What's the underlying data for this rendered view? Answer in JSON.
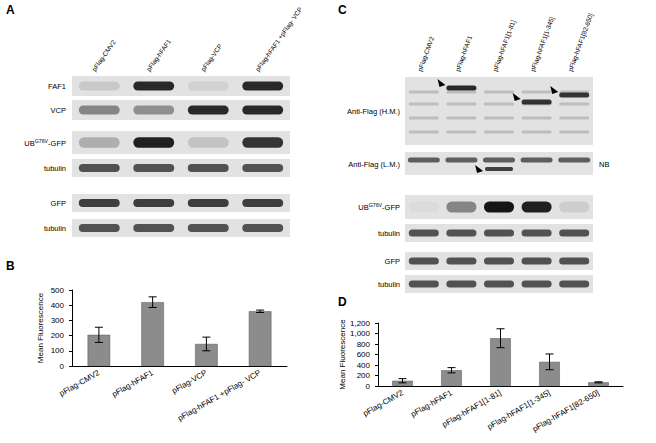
{
  "panel_labels": {
    "A": "A",
    "B": "B",
    "C": "C",
    "D": "D"
  },
  "blots": [
    {
      "panel_label": "A",
      "lanes": [
        "pFlag-CMV2",
        "pFlag-hFAF1",
        "pFlag-VCP",
        "pFlag-hFAF1 +pFlag- VCP"
      ],
      "rows": [
        {
          "text": "FAF1"
        },
        {
          "text": "VCP"
        },
        {
          "text": "UB",
          "sup": "G76V",
          "after": "-GFP"
        },
        {
          "text": "tubulin"
        },
        {
          "text": "GFP"
        },
        {
          "text": "tubulin"
        }
      ]
    },
    {
      "panel_label": "C",
      "lanes": [
        "pFlag-CMV2",
        "pFlag-hFAF1",
        "pFlag-hFAF1[1-81]",
        "pFlag-hFAF1[1-345]",
        "pFlag-hFAF1[82-650]"
      ],
      "rows": [
        {
          "text": "Anti-Flag (H.M.)"
        },
        {
          "text": "Anti-Flag (L.M.)",
          "side_label": "NB"
        },
        {
          "text": "UB",
          "sup": "G76V",
          "after": "-GFP"
        },
        {
          "text": "tubulin"
        },
        {
          "text": "GFP"
        },
        {
          "text": "tubulin"
        }
      ]
    }
  ],
  "chart_data": [
    {
      "panel_label": "B",
      "type": "bar",
      "categories": [
        "pFlag-CMV2",
        "pFlag-hFAF1",
        "pFlag-VCP",
        "pFlag-hFAF1 +pFlag- VCP"
      ],
      "values": [
        205,
        420,
        145,
        360
      ],
      "errors": [
        50,
        35,
        45,
        8
      ],
      "color": "#8c8c8c",
      "ylabel": "Mean Fluorescence",
      "ylim": [
        0,
        500
      ],
      "yticks": [
        0,
        100,
        200,
        300,
        400,
        500
      ],
      "grid": false
    },
    {
      "panel_label": "D",
      "type": "bar",
      "categories": [
        "pFlag-CMV2",
        "pFlag-hFAF1",
        "pFlag-hFAF1[1-81]",
        "pFlag-hFAF1[1-345]",
        "pFlag-hFAF1[82-650]"
      ],
      "values": [
        100,
        300,
        910,
        460,
        70
      ],
      "errors": [
        40,
        50,
        180,
        150,
        10
      ],
      "color": "#8c8c8c",
      "ylabel": "Mean Fluorescence",
      "ylim": [
        0,
        1200
      ],
      "yticks": [
        0,
        200,
        400,
        600,
        800,
        1000,
        1200
      ],
      "grid": false
    }
  ]
}
